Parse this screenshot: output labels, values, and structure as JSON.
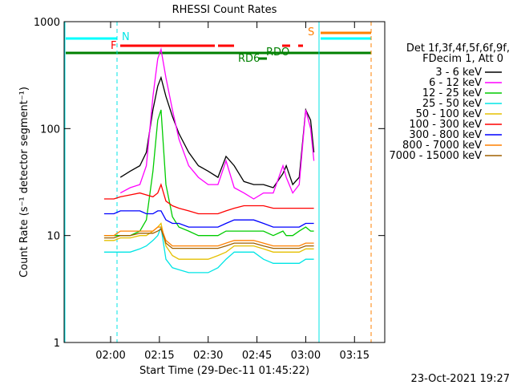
{
  "chart_data": {
    "type": "line",
    "title": "RHESSI Count Rates",
    "xlabel": "Start Time (29-Dec-11 01:45:22)",
    "ylabel": "Count Rate (s⁻¹ detector segment⁻¹)",
    "legend_title": [
      "Det 1f,3f,4f,5f,6f,9f,",
      "FDecim 1, Att 0"
    ],
    "footer": "23-Oct-2021 19:27",
    "annotations": [
      "N",
      "F",
      "S",
      "RD6",
      "RDO"
    ],
    "log_y": true,
    "xlim": [
      105.7,
      204.3
    ],
    "ylim": [
      1,
      1000
    ],
    "xticks": [
      {
        "value": 120,
        "label": "02:00"
      },
      {
        "value": 135,
        "label": "02:15"
      },
      {
        "value": 150,
        "label": "02:30"
      },
      {
        "value": 165,
        "label": "02:45"
      },
      {
        "value": 180,
        "label": "03:00"
      },
      {
        "value": 195,
        "label": "03:15"
      }
    ],
    "yticks": [
      1,
      10,
      100,
      1000
    ],
    "x": [
      118,
      121,
      123,
      126,
      129,
      131,
      133,
      134.5,
      135.5,
      137,
      139,
      141,
      144,
      147,
      150,
      153,
      155.5,
      158,
      161,
      164,
      167,
      170,
      173,
      174,
      176,
      178,
      180,
      181.5,
      182.5
    ],
    "series": [
      {
        "name": "3 - 6 keV",
        "color": "#000000",
        "values": [
          null,
          null,
          35,
          40,
          45,
          60,
          150,
          250,
          300,
          200,
          130,
          90,
          60,
          45,
          40,
          35,
          55,
          45,
          32,
          30,
          30,
          28,
          38,
          45,
          30,
          35,
          150,
          120,
          60
        ]
      },
      {
        "name": "6 - 12 keV",
        "color": "#ff00ff",
        "values": [
          null,
          null,
          25,
          28,
          30,
          45,
          200,
          450,
          550,
          300,
          150,
          80,
          45,
          35,
          30,
          30,
          50,
          28,
          25,
          22,
          25,
          25,
          45,
          35,
          25,
          30,
          150,
          100,
          50
        ]
      },
      {
        "name": "12 - 25 keV",
        "color": "#00cc00",
        "values": [
          10,
          10,
          10,
          10,
          11,
          14,
          40,
          120,
          150,
          30,
          15,
          12,
          11,
          10,
          10,
          10,
          11,
          11,
          11,
          11,
          11,
          10,
          11,
          10,
          10,
          11,
          12,
          11,
          11
        ]
      },
      {
        "name": "25 - 50 keV",
        "color": "#00e5e5",
        "values": [
          7,
          7,
          7,
          7,
          7.5,
          8,
          9,
          10,
          12,
          6,
          5,
          4.8,
          4.5,
          4.5,
          4.5,
          5,
          6,
          7,
          7,
          7,
          6,
          5.5,
          5.5,
          5.5,
          5.5,
          5.5,
          6,
          6,
          6
        ]
      },
      {
        "name": "50 - 100 keV",
        "color": "#e5c000",
        "values": [
          9,
          9,
          9.5,
          9.5,
          10,
          10,
          11,
          12,
          13,
          8,
          6.5,
          6,
          6,
          6,
          6,
          6.5,
          7,
          8,
          8,
          8,
          7.5,
          7,
          7,
          7,
          7,
          7,
          7.5,
          7.5,
          7.5
        ]
      },
      {
        "name": "100 - 300 keV",
        "color": "#ff0000",
        "values": [
          22,
          22,
          23,
          24,
          25,
          24,
          23,
          25,
          30,
          21,
          19,
          18,
          17,
          16,
          16,
          16,
          17,
          18,
          19,
          19,
          19,
          18,
          18,
          18,
          18,
          18,
          18,
          18,
          18
        ]
      },
      {
        "name": "300 - 800 keV",
        "color": "#0000ff",
        "values": [
          16,
          16,
          17,
          17,
          17,
          16,
          16,
          17,
          17,
          14,
          13,
          13,
          12,
          12,
          12,
          12,
          13,
          14,
          14,
          14,
          13,
          12,
          12,
          12,
          12,
          12,
          13,
          13,
          13
        ]
      },
      {
        "name": "800 - 7000 keV",
        "color": "#ff8000",
        "values": [
          10,
          10,
          11,
          11,
          11,
          11,
          11,
          12,
          12,
          9,
          8,
          8,
          8,
          8,
          8,
          8,
          8.5,
          9,
          9,
          9,
          8.5,
          8,
          8,
          8,
          8,
          8,
          8.5,
          8.5,
          8.5
        ]
      },
      {
        "name": "7000 - 15000 keV",
        "color": "#a06000",
        "values": [
          9.5,
          9.5,
          10,
          10,
          10.5,
          10.5,
          10.5,
          11,
          11.5,
          8.5,
          7.6,
          7.6,
          7.6,
          7.6,
          7.6,
          7.6,
          8,
          8.5,
          8.5,
          8.5,
          8,
          7.6,
          7.6,
          7.6,
          7.6,
          7.6,
          8,
          8,
          8
        ]
      }
    ]
  }
}
